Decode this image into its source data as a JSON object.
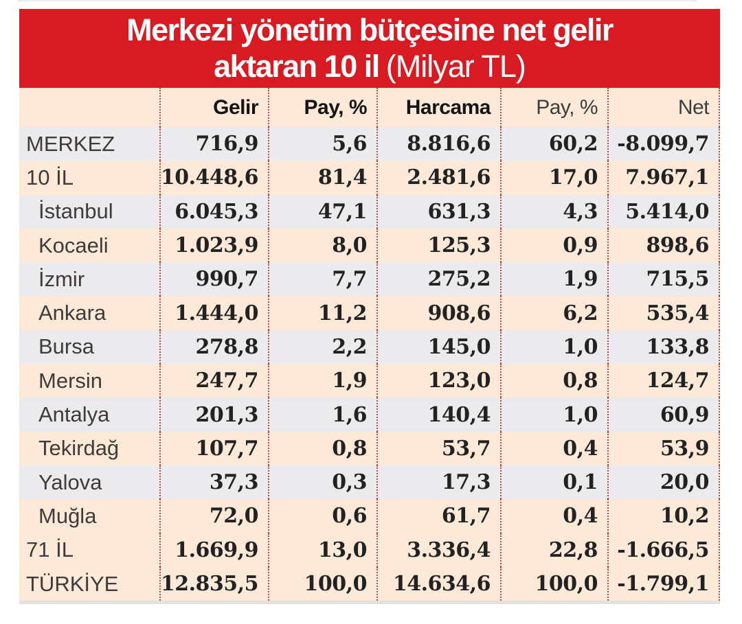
{
  "title": {
    "line1": "Merkezi yönetim bütçesine net gelir",
    "line2_bold": "aktaran 10 il",
    "line2_light": "(Milyar TL)"
  },
  "chart_data": {
    "type": "table",
    "title": "Merkezi yönetim bütçesine net gelir aktaran 10 il (Milyar TL)",
    "unit": "Milyar TL",
    "columns": [
      "",
      "Gelir",
      "Pay, %",
      "Harcama",
      "Pay, %",
      "Net"
    ],
    "rows": [
      {
        "label": "MERKEZ",
        "indent": false,
        "shade": "gray",
        "values": [
          "716,9",
          "5,6",
          "8.816,6",
          "60,2",
          "-8.099,7"
        ]
      },
      {
        "label": "10 İL",
        "indent": false,
        "shade": "peach",
        "values": [
          "10.448,6",
          "81,4",
          "2.481,6",
          "17,0",
          "7.967,1"
        ]
      },
      {
        "label": "İstanbul",
        "indent": true,
        "shade": "gray",
        "values": [
          "6.045,3",
          "47,1",
          "631,3",
          "4,3",
          "5.414,0"
        ]
      },
      {
        "label": "Kocaeli",
        "indent": true,
        "shade": "peach",
        "values": [
          "1.023,9",
          "8,0",
          "125,3",
          "0,9",
          "898,6"
        ]
      },
      {
        "label": "İzmir",
        "indent": true,
        "shade": "gray",
        "values": [
          "990,7",
          "7,7",
          "275,2",
          "1,9",
          "715,5"
        ]
      },
      {
        "label": "Ankara",
        "indent": true,
        "shade": "peach",
        "values": [
          "1.444,0",
          "11,2",
          "908,6",
          "6,2",
          "535,4"
        ]
      },
      {
        "label": "Bursa",
        "indent": true,
        "shade": "gray",
        "values": [
          "278,8",
          "2,2",
          "145,0",
          "1,0",
          "133,8"
        ]
      },
      {
        "label": "Mersin",
        "indent": true,
        "shade": "peach",
        "values": [
          "247,7",
          "1,9",
          "123,0",
          "0,8",
          "124,7"
        ]
      },
      {
        "label": "Antalya",
        "indent": true,
        "shade": "gray",
        "values": [
          "201,3",
          "1,6",
          "140,4",
          "1,0",
          "60,9"
        ]
      },
      {
        "label": "Tekirdağ",
        "indent": true,
        "shade": "peach",
        "values": [
          "107,7",
          "0,8",
          "53,7",
          "0,4",
          "53,9"
        ]
      },
      {
        "label": "Yalova",
        "indent": true,
        "shade": "gray",
        "values": [
          "37,3",
          "0,3",
          "17,3",
          "0,1",
          "20,0"
        ]
      },
      {
        "label": "Muğla",
        "indent": true,
        "shade": "peach",
        "values": [
          "72,0",
          "0,6",
          "61,7",
          "0,4",
          "10,2"
        ]
      },
      {
        "label": "71 İL",
        "indent": false,
        "shade": "peach",
        "values": [
          "1.669,9",
          "13,0",
          "3.336,4",
          "22,8",
          "-1.666,5"
        ]
      },
      {
        "label": "TÜRKİYE",
        "indent": false,
        "shade": "peach",
        "values": [
          "12.835,5",
          "100,0",
          "14.634,6",
          "100,0",
          "-1.799,1"
        ]
      }
    ]
  },
  "colors": {
    "banner_red": "#d81b22",
    "row_peach": "#fce9d8",
    "row_gray": "#ebebed",
    "dotted_line": "#b5503e",
    "number_text": "#222222",
    "label_text": "#403b39"
  }
}
